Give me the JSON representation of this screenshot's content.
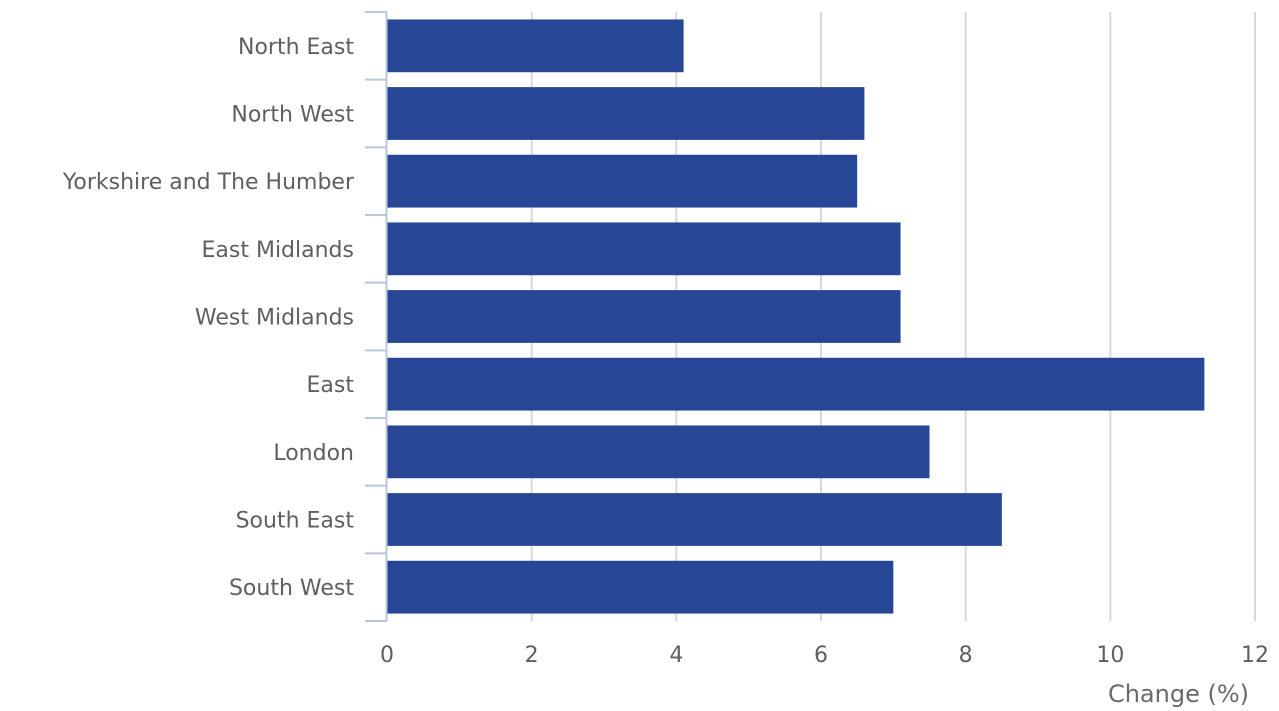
{
  "chart_data": {
    "type": "bar",
    "orientation": "horizontal",
    "categories": [
      "North East",
      "North West",
      "Yorkshire and The Humber",
      "East Midlands",
      "West Midlands",
      "East",
      "London",
      "South East",
      "South West"
    ],
    "values": [
      4.1,
      6.6,
      6.5,
      7.1,
      7.1,
      11.3,
      7.5,
      8.5,
      7.0
    ],
    "title": "",
    "xlabel": "Change (%)",
    "ylabel": "",
    "xlim": [
      0,
      12
    ],
    "xticks": [
      "0",
      "2",
      "4",
      "6",
      "8",
      "10",
      "12"
    ],
    "grid": "vertical",
    "legend": "none",
    "colors": {
      "bar": "#274796",
      "grid": "#d9d9d9",
      "axis": "#b8c7de",
      "text": "#5f5f5f"
    }
  }
}
